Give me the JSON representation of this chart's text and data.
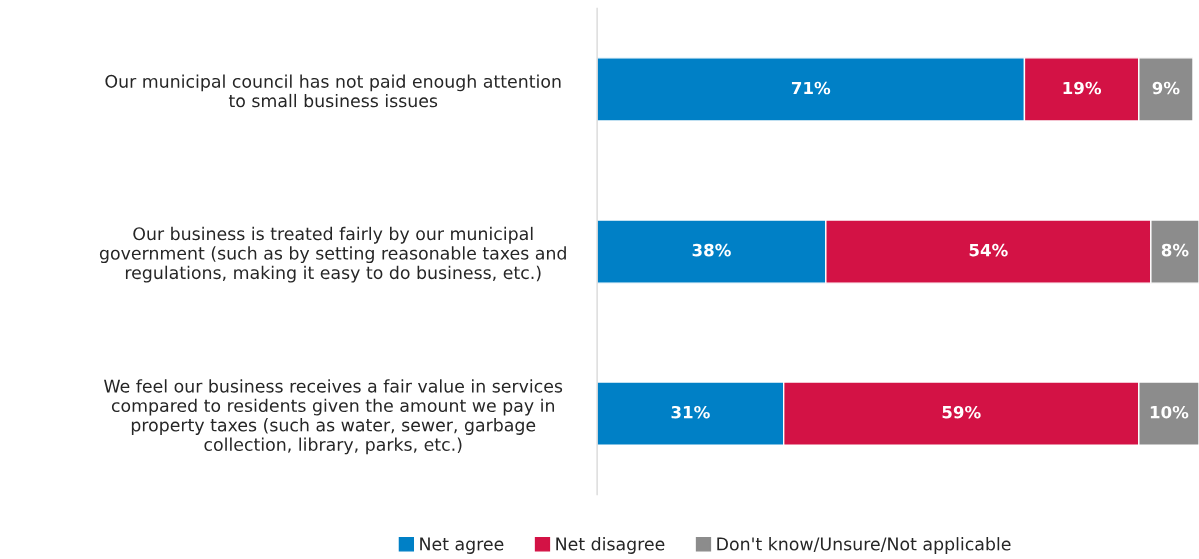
{
  "chart_data": {
    "type": "bar",
    "orientation": "horizontal",
    "stacked": true,
    "categories": [
      "Our municipal council has not paid enough attention\nto small business issues",
      "Our business is treated fairly by our municipal\ngovernment (such as by setting reasonable taxes and\nregulations, making it easy to do business, etc.)",
      "We feel our business receives a fair value in services\ncompared to residents given the amount we pay in\nproperty taxes (such as water, sewer, garbage\ncollection, library, parks, etc.)"
    ],
    "series": [
      {
        "name": "Net agree",
        "color": "#0080c6",
        "values": [
          71,
          38,
          31
        ],
        "value_labels": [
          "71%",
          "38%",
          "31%"
        ]
      },
      {
        "name": "Net disagree",
        "color": "#d31245",
        "values": [
          19,
          54,
          59
        ],
        "value_labels": [
          "19%",
          "54%",
          "59%"
        ]
      },
      {
        "name": "Don't know/Unsure/Not applicable",
        "color": "#8c8c8c",
        "values": [
          9,
          8,
          10
        ],
        "value_labels": [
          "9%",
          "8%",
          "10%"
        ]
      }
    ],
    "legend": "bottom",
    "grid": false
  }
}
